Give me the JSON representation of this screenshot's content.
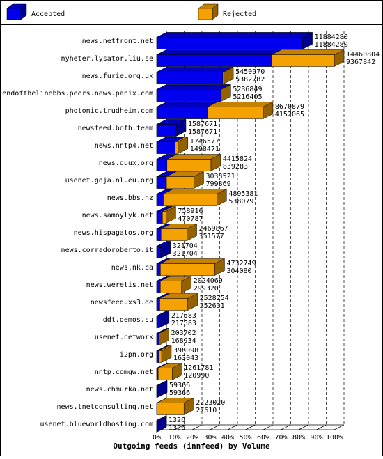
{
  "chart_data": {
    "type": "bar3d",
    "title": "Outgoing feeds (innfeed) by Volume",
    "categories": [
      "news.netfront.net",
      "nyheter.lysator.liu.se",
      "news.furie.org.uk",
      "endofthelinebbs.peers.news.panix.com",
      "photonic.trudheim.com",
      "newsfeed.bofh.team",
      "news.nntp4.net",
      "news.quux.org",
      "usenet.goja.nl.eu.org",
      "news.bbs.nz",
      "news.samoylyk.net",
      "news.hispagatos.org",
      "news.corradoroberto.it",
      "news.nk.ca",
      "news.weretis.net",
      "newsfeed.xs3.de",
      "ddt.demos.su",
      "usenet.network",
      "i2pn.org",
      "nntp.comgw.net",
      "news.chmurka.net",
      "news.tnetconsulting.net",
      "usenet.blueworldhosting.com"
    ],
    "totals": [
      11884280,
      14460804,
      5450970,
      5236849,
      8670879,
      1587671,
      1746577,
      4415824,
      3033521,
      4895381,
      758916,
      2469867,
      321704,
      4732749,
      2024069,
      2528254,
      217583,
      203702,
      398098,
      1261781,
      59366,
      2223020,
      1326
    ],
    "series": [
      {
        "name": "Accepted",
        "color": "#0000ee",
        "values": [
          11884280,
          9367842,
          5382782,
          5216405,
          4152065,
          1587671,
          1498471,
          839283,
          799869,
          538079,
          470787,
          351577,
          321704,
          304080,
          299320,
          252631,
          217583,
          168934,
          163043,
          120990,
          59366,
          27610,
          1326
        ]
      },
      {
        "name": "Rejected",
        "color": "#f5a200"
      }
    ],
    "xlim": [
      0,
      14460804
    ],
    "xticks": [
      {
        "value": 0,
        "label": "0%"
      },
      {
        "value": 1446080.4,
        "label": "10%"
      },
      {
        "value": 2892160.8,
        "label": "20%"
      },
      {
        "value": 4338241.2,
        "label": "30%"
      },
      {
        "value": 5784321.6,
        "label": "40%"
      },
      {
        "value": 7230402,
        "label": "50%"
      },
      {
        "value": 8676482.4,
        "label": "60%"
      },
      {
        "value": 10122562.8,
        "label": "70%"
      },
      {
        "value": 11568643.2,
        "label": "80%"
      },
      {
        "value": 13014723.6,
        "label": "90%"
      },
      {
        "value": 14460804,
        "label": "100%"
      }
    ],
    "grid": true
  }
}
